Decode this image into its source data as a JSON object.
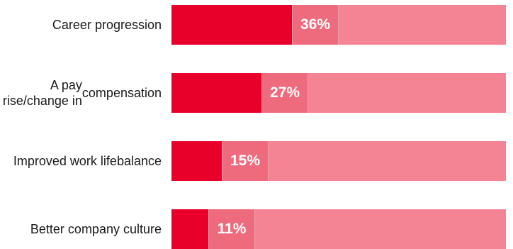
{
  "chart_data": {
    "type": "bar",
    "orientation": "horizontal",
    "categories": [
      "Career progression",
      "A pay rise/change in compensation",
      "Improved work life balance",
      "Better company culture"
    ],
    "category_lines": [
      [
        "Career progression"
      ],
      [
        "A pay rise/change in",
        "compensation"
      ],
      [
        "Improved work life",
        "balance"
      ],
      [
        "Better company culture"
      ]
    ],
    "values": [
      36,
      27,
      15,
      11
    ],
    "value_labels": [
      "36%",
      "27%",
      "15%",
      "11%"
    ],
    "unit": "%",
    "xlim": [
      0,
      100
    ],
    "grid": false,
    "legend": "none",
    "colors": {
      "fill": "#e8002b",
      "track": "#f48393",
      "label_box": "#ee6b7e",
      "label_text": "#ffffff"
    }
  }
}
